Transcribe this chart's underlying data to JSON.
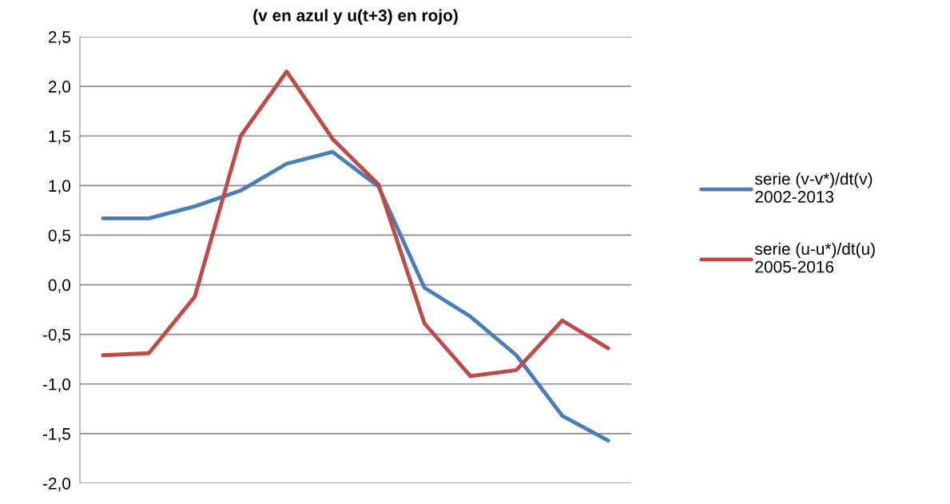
{
  "chart_data": {
    "type": "line",
    "title": "(v en azul y u(t+3) en rojo)",
    "categories": [
      null,
      null,
      null,
      null,
      null,
      null,
      null,
      null,
      null,
      null,
      null,
      null
    ],
    "series": [
      {
        "name": "serie (v-v*)/dt(v)\n2002-2013",
        "color": "#4a7ebb",
        "values": [
          0.67,
          0.67,
          0.79,
          0.95,
          1.22,
          1.34,
          0.99,
          -0.03,
          -0.32,
          -0.71,
          -1.32,
          -1.57
        ]
      },
      {
        "name": "serie (u-u*)/dt(u)\n2005-2016",
        "color": "#be4b48",
        "values": [
          -0.71,
          -0.69,
          -0.12,
          1.5,
          2.15,
          1.47,
          1.01,
          -0.39,
          -0.92,
          -0.86,
          -0.36,
          -0.64
        ]
      }
    ],
    "ylim": [
      -2.0,
      2.5
    ],
    "yticks": [
      {
        "value": -2.0,
        "label": "-2,0"
      },
      {
        "value": -1.5,
        "label": "-1,5"
      },
      {
        "value": -1.0,
        "label": "-1,0"
      },
      {
        "value": -0.5,
        "label": "-0,5"
      },
      {
        "value": 0.0,
        "label": "0,0"
      },
      {
        "value": 0.5,
        "label": "0,5"
      },
      {
        "value": 1.0,
        "label": "1,0"
      },
      {
        "value": 1.5,
        "label": "1,5"
      },
      {
        "value": 2.0,
        "label": "2,0"
      },
      {
        "value": 2.5,
        "label": "2,5"
      }
    ],
    "grid": "y",
    "legend": "right",
    "marker": "none",
    "line_style": "solid"
  }
}
